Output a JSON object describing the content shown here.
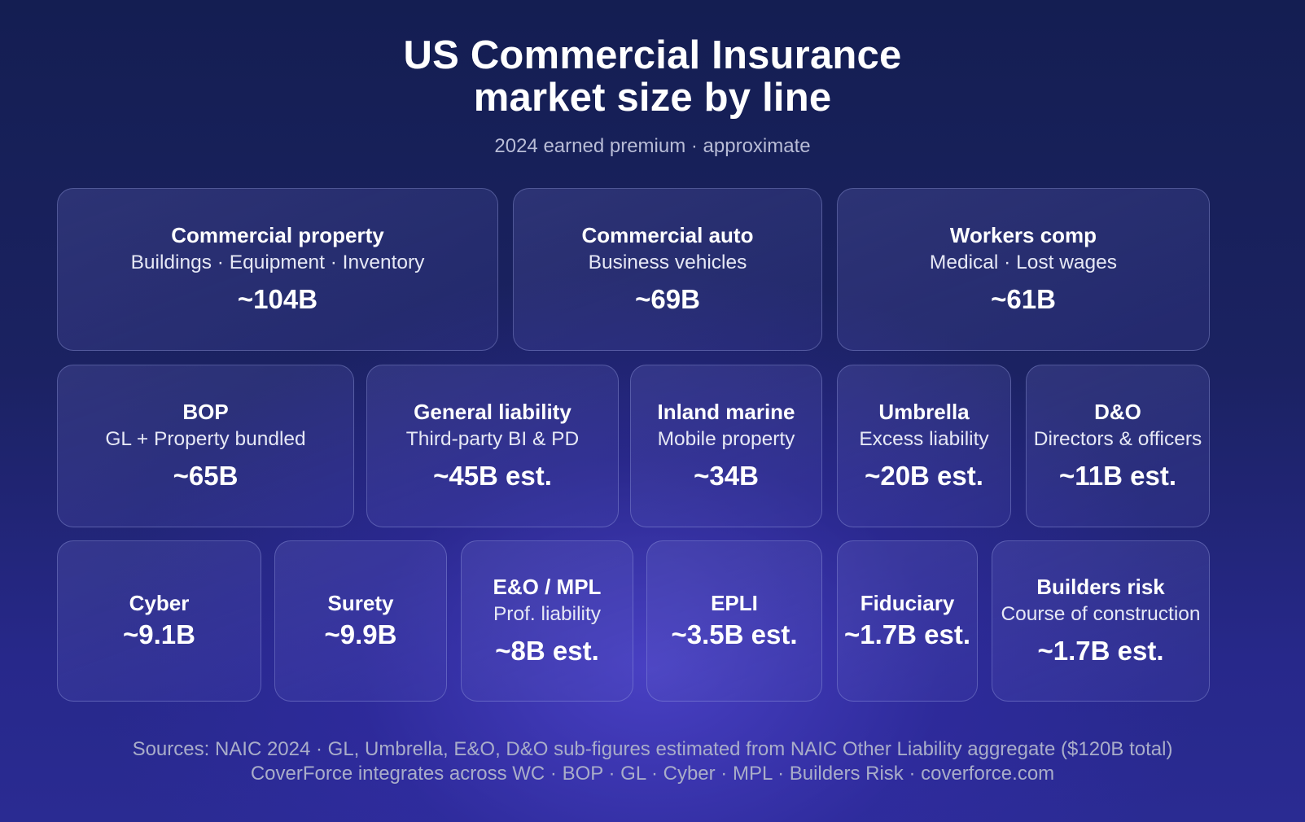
{
  "header": {
    "title_line1": "US Commercial Insurance",
    "title_line2": "market size by line",
    "subtitle": "2024 earned premium · approximate"
  },
  "footer": {
    "line1": "Sources: NAIC 2024 · GL, Umbrella, E&O, D&O sub-figures estimated from NAIC Other Liability  aggregate ($120B total)",
    "line2": "CoverForce integrates across WC · BOP · GL · Cyber · MPL · Builders Risk · coverforce.com"
  },
  "colors": {
    "background": "#1b2262",
    "tile_border": "#a0aae6",
    "text": "#ffffff",
    "muted_text": "#b8bcd6"
  },
  "chart_data": {
    "type": "table",
    "title": "US Commercial Insurance market size by line",
    "subtitle": "2024 earned premium · approximate",
    "unit": "B",
    "tiles": [
      {
        "name": "Commercial property",
        "desc": "Buildings · Equipment · Inventory",
        "value": 104,
        "label": "~104B"
      },
      {
        "name": "Commercial auto",
        "desc": "Business vehicles",
        "value": 69,
        "label": "~69B"
      },
      {
        "name": "Workers comp",
        "desc": "Medical · Lost wages",
        "value": 61,
        "label": "~61B"
      },
      {
        "name": "BOP",
        "desc": "GL + Property bundled",
        "value": 65,
        "label": "~65B"
      },
      {
        "name": "General liability",
        "desc": "Third-party BI & PD",
        "value": 45,
        "label": "~45B est."
      },
      {
        "name": "Inland marine",
        "desc": "Mobile property",
        "value": 34,
        "label": "~34B"
      },
      {
        "name": "Umbrella",
        "desc": "Excess liability",
        "value": 20,
        "label": "~20B est."
      },
      {
        "name": "D&O",
        "desc": "Directors & officers",
        "value": 11,
        "label": "~11B est."
      },
      {
        "name": "Cyber",
        "desc": "",
        "value": 9.1,
        "label": "~9.1B"
      },
      {
        "name": "Surety",
        "desc": "",
        "value": 9.9,
        "label": "~9.9B"
      },
      {
        "name": "E&O / MPL",
        "desc": "Prof. liability",
        "value": 8,
        "label": "~8B est."
      },
      {
        "name": "EPLI",
        "desc": "",
        "value": 3.5,
        "label": "~3.5B est."
      },
      {
        "name": "Fiduciary",
        "desc": "",
        "value": 1.7,
        "label": "~1.7B est."
      },
      {
        "name": "Builders risk",
        "desc": "Course of construction",
        "value": 1.7,
        "label": "~1.7B est."
      }
    ]
  }
}
